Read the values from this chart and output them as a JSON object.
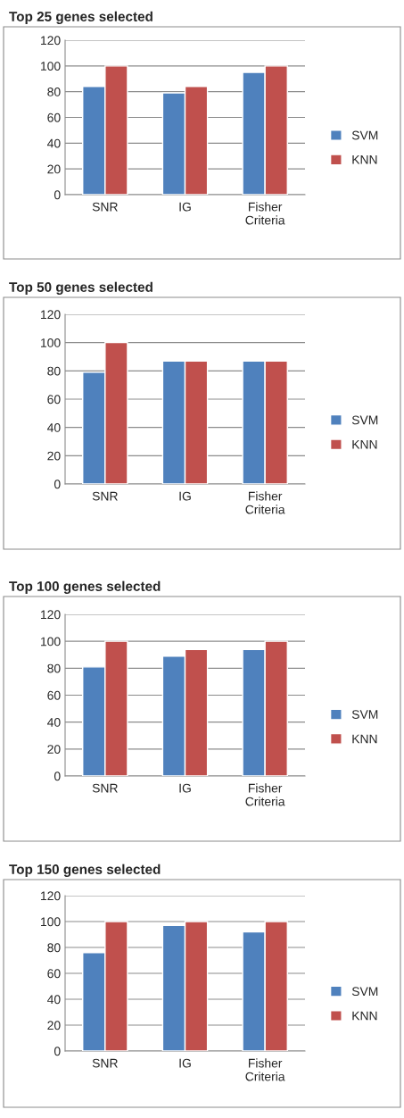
{
  "chart_data": [
    {
      "type": "bar",
      "title": "Top 25 genes selected",
      "categories": [
        "SNR",
        "IG",
        "Fisher\nCriteria"
      ],
      "ylim": [
        0,
        120
      ],
      "yticks": [
        0,
        20,
        40,
        60,
        80,
        100,
        120
      ],
      "grid": "y",
      "legend": "right",
      "series": [
        {
          "name": "SVM",
          "color": "#4f81bd",
          "values": [
            84,
            79,
            95
          ]
        },
        {
          "name": "KNN",
          "color": "#c0504d",
          "values": [
            100,
            84,
            100
          ]
        }
      ]
    },
    {
      "type": "bar",
      "title": "Top 50 genes selected",
      "categories": [
        "SNR",
        "IG",
        "Fisher\nCriteria"
      ],
      "ylim": [
        0,
        120
      ],
      "yticks": [
        0,
        20,
        40,
        60,
        80,
        100,
        120
      ],
      "grid": "y",
      "legend": "right",
      "series": [
        {
          "name": "SVM",
          "color": "#4f81bd",
          "values": [
            79,
            87,
            87
          ]
        },
        {
          "name": "KNN",
          "color": "#c0504d",
          "values": [
            100,
            87,
            87
          ]
        }
      ]
    },
    {
      "type": "bar",
      "title": "Top 100 genes selected",
      "categories": [
        "SNR",
        "IG",
        "Fisher\nCriteria"
      ],
      "ylim": [
        0,
        120
      ],
      "yticks": [
        0,
        20,
        40,
        60,
        80,
        100,
        120
      ],
      "grid": "y",
      "legend": "right",
      "series": [
        {
          "name": "SVM",
          "color": "#4f81bd",
          "values": [
            81,
            89,
            94
          ]
        },
        {
          "name": "KNN",
          "color": "#c0504d",
          "values": [
            100,
            94,
            100
          ]
        }
      ]
    },
    {
      "type": "bar",
      "title": "Top 150 genes selected",
      "categories": [
        "SNR",
        "IG",
        "Fisher\nCriteria"
      ],
      "ylim": [
        0,
        120
      ],
      "yticks": [
        0,
        20,
        40,
        60,
        80,
        100,
        120
      ],
      "grid": "y",
      "legend": "right",
      "series": [
        {
          "name": "SVM",
          "color": "#4f81bd",
          "values": [
            76,
            97,
            92
          ]
        },
        {
          "name": "KNN",
          "color": "#c0504d",
          "values": [
            100,
            100,
            100
          ]
        }
      ]
    }
  ]
}
